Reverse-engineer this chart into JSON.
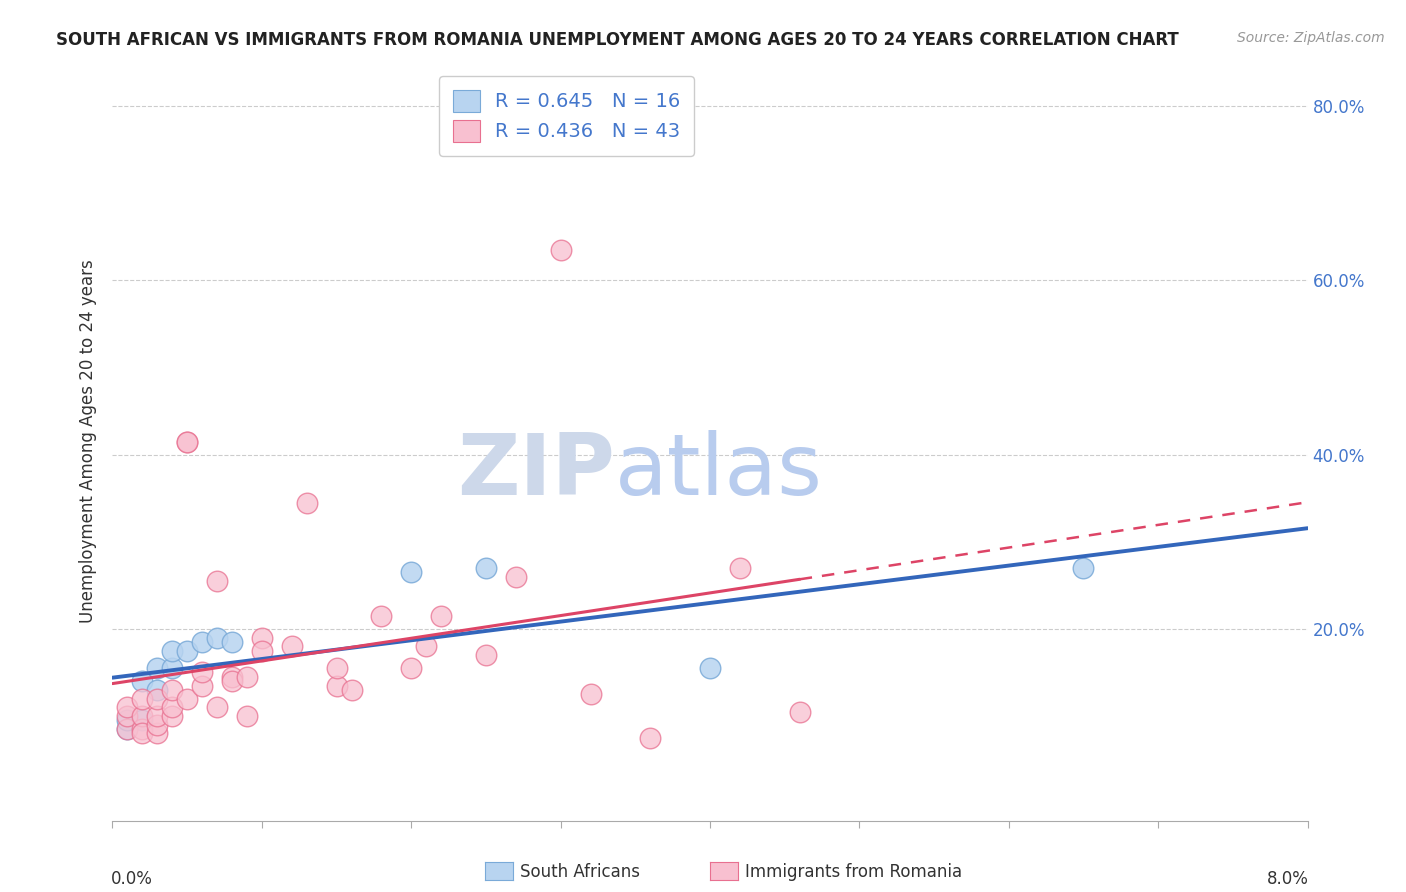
{
  "title": "SOUTH AFRICAN VS IMMIGRANTS FROM ROMANIA UNEMPLOYMENT AMONG AGES 20 TO 24 YEARS CORRELATION CHART",
  "source": "Source: ZipAtlas.com",
  "ylabel": "Unemployment Among Ages 20 to 24 years",
  "xlim": [
    0.0,
    0.08
  ],
  "ylim": [
    -0.02,
    0.85
  ],
  "yticks": [
    0.0,
    0.2,
    0.4,
    0.6,
    0.8
  ],
  "ytick_labels": [
    "",
    "20.0%",
    "40.0%",
    "60.0%",
    "80.0%"
  ],
  "xticks": [
    0.0,
    0.01,
    0.02,
    0.03,
    0.04,
    0.05,
    0.06,
    0.07,
    0.08
  ],
  "south_africans_R": 0.645,
  "south_africans_N": 16,
  "romania_R": 0.436,
  "romania_N": 43,
  "sa_color": "#b8d4f0",
  "sa_edge_color": "#7aaad8",
  "rom_color": "#f8c0d0",
  "rom_edge_color": "#e87090",
  "sa_line_color": "#3366bb",
  "rom_line_color": "#dd4466",
  "watermark_zip_color": "#d8e4f2",
  "watermark_atlas_color": "#b8ccee",
  "sa_scatter_x": [
    0.001,
    0.001,
    0.002,
    0.002,
    0.003,
    0.003,
    0.004,
    0.004,
    0.005,
    0.006,
    0.007,
    0.008,
    0.02,
    0.025,
    0.04,
    0.065
  ],
  "sa_scatter_y": [
    0.085,
    0.095,
    0.095,
    0.14,
    0.13,
    0.155,
    0.155,
    0.175,
    0.175,
    0.185,
    0.19,
    0.185,
    0.265,
    0.27,
    0.155,
    0.27
  ],
  "rom_scatter_x": [
    0.001,
    0.001,
    0.001,
    0.002,
    0.002,
    0.002,
    0.002,
    0.003,
    0.003,
    0.003,
    0.003,
    0.004,
    0.004,
    0.004,
    0.005,
    0.005,
    0.005,
    0.006,
    0.006,
    0.007,
    0.007,
    0.008,
    0.008,
    0.009,
    0.009,
    0.01,
    0.01,
    0.012,
    0.013,
    0.015,
    0.015,
    0.016,
    0.018,
    0.02,
    0.021,
    0.022,
    0.025,
    0.027,
    0.03,
    0.032,
    0.036,
    0.042,
    0.046
  ],
  "rom_scatter_y": [
    0.085,
    0.1,
    0.11,
    0.085,
    0.1,
    0.08,
    0.12,
    0.08,
    0.09,
    0.1,
    0.12,
    0.1,
    0.11,
    0.13,
    0.415,
    0.415,
    0.12,
    0.135,
    0.15,
    0.255,
    0.11,
    0.145,
    0.14,
    0.1,
    0.145,
    0.19,
    0.175,
    0.18,
    0.345,
    0.135,
    0.155,
    0.13,
    0.215,
    0.155,
    0.18,
    0.215,
    0.17,
    0.26,
    0.635,
    0.125,
    0.075,
    0.27,
    0.105
  ]
}
